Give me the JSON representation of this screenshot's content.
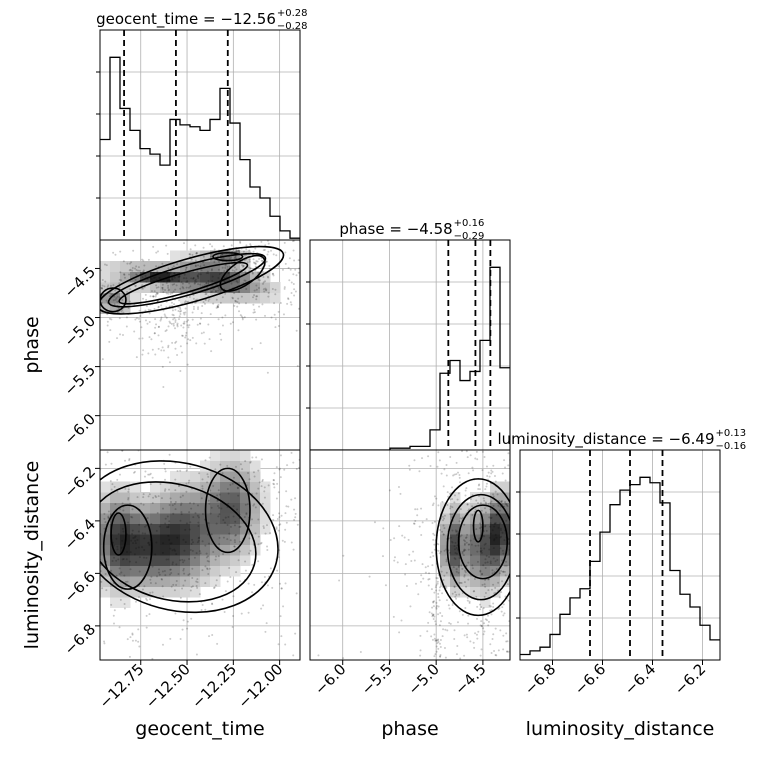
{
  "chart_data": {
    "type": "corner",
    "parameters": [
      "geocent_time",
      "phase",
      "luminosity_distance"
    ],
    "titles": [
      {
        "param": "geocent_time",
        "prefix": "geocent_time = ",
        "median": "−12.56",
        "plus": "+0.28",
        "minus": "−0.28"
      },
      {
        "param": "phase",
        "prefix": "phase = ",
        "median": "−4.58",
        "plus": "+0.16",
        "minus": "−0.29"
      },
      {
        "param": "luminosity_distance",
        "prefix": "luminosity_distance = ",
        "median": "−6.49",
        "plus": "+0.13",
        "minus": "−0.16"
      }
    ],
    "ranges": {
      "geocent_time": [
        -12.97,
        -11.89
      ],
      "phase": [
        -6.35,
        -4.21
      ],
      "luminosity_distance": [
        -6.93,
        -6.13
      ]
    },
    "xlabels": [
      "geocent_time",
      "phase",
      "luminosity_distance"
    ],
    "ylabels": [
      "phase",
      "luminosity_distance"
    ],
    "ticks": {
      "geocent_time": {
        "values": [
          -12.75,
          -12.5,
          -12.25,
          -12.0
        ],
        "labels": [
          "−12.75",
          "−12.50",
          "−12.25",
          "−12.00"
        ]
      },
      "phase": {
        "values": [
          -6.0,
          -5.5,
          -5.0,
          -4.5
        ],
        "labels": [
          "−6.0",
          "−5.5",
          "−5.0",
          "−4.5"
        ]
      },
      "luminosity_distance": {
        "values": [
          -6.8,
          -6.6,
          -6.4,
          -6.2
        ],
        "labels": [
          "−6.8",
          "−6.6",
          "−6.4",
          "−6.2"
        ]
      }
    },
    "histograms": [
      {
        "param": "geocent_time",
        "edges": [
          -12.97,
          -12.916,
          -12.862,
          -12.808,
          -12.754,
          -12.7,
          -12.646,
          -12.592,
          -12.538,
          -12.484,
          -12.43,
          -12.376,
          -12.322,
          -12.268,
          -12.214,
          -12.16,
          -12.106,
          -12.052,
          -11.998,
          -11.944,
          -11.89
        ],
        "counts": [
          0.55,
          1.0,
          0.72,
          0.6,
          0.5,
          0.47,
          0.41,
          0.66,
          0.63,
          0.62,
          0.6,
          0.66,
          0.83,
          0.64,
          0.44,
          0.29,
          0.23,
          0.13,
          0.05,
          0.01
        ],
        "quantiles": [
          -12.84,
          -12.56,
          -12.28
        ]
      },
      {
        "param": "phase",
        "edges": [
          -6.35,
          -6.243,
          -6.136,
          -6.029,
          -5.922,
          -5.815,
          -5.708,
          -5.601,
          -5.494,
          -5.387,
          -5.28,
          -5.173,
          -5.066,
          -4.959,
          -4.852,
          -4.745,
          -4.638,
          -4.531,
          -4.424,
          -4.317,
          -4.21
        ],
        "counts": [
          0,
          0,
          0,
          0,
          0,
          0,
          0,
          0,
          0.01,
          0.01,
          0.02,
          0.02,
          0.11,
          0.42,
          0.49,
          0.38,
          0.43,
          0.6,
          1.0,
          0.45
        ],
        "quantiles": [
          -4.87,
          -4.58,
          -4.42
        ]
      },
      {
        "param": "luminosity_distance",
        "edges": [
          -6.93,
          -6.89,
          -6.85,
          -6.81,
          -6.77,
          -6.73,
          -6.69,
          -6.65,
          -6.61,
          -6.57,
          -6.53,
          -6.49,
          -6.45,
          -6.41,
          -6.37,
          -6.33,
          -6.29,
          -6.25,
          -6.21,
          -6.17,
          -6.13
        ],
        "counts": [
          0.03,
          0.05,
          0.07,
          0.14,
          0.25,
          0.34,
          0.39,
          0.54,
          0.7,
          0.85,
          0.93,
          0.96,
          1.0,
          0.97,
          0.86,
          0.49,
          0.36,
          0.29,
          0.19,
          0.11
        ],
        "quantiles": [
          -6.65,
          -6.49,
          -6.36
        ]
      }
    ],
    "densities": [
      {
        "x": "geocent_time",
        "y": "phase",
        "dense_regions": [
          {
            "cx": -12.5,
            "cy": -4.62,
            "sx": 0.3,
            "sy": 0.1,
            "angle": -16
          },
          {
            "cx": -12.9,
            "cy": -4.82,
            "sx": 0.07,
            "sy": 0.1,
            "angle": 0
          },
          {
            "cx": -12.32,
            "cy": -4.55,
            "sx": 0.16,
            "sy": 0.09,
            "angle": -35
          },
          {
            "cx": -12.28,
            "cy": -4.38,
            "sx": 0.07,
            "sy": 0.04,
            "angle": 0
          },
          {
            "cx": -12.65,
            "cy": -4.6,
            "sx": 0.1,
            "sy": 0.04,
            "angle": -10
          }
        ],
        "scatter_regions": [
          {
            "cx": -12.6,
            "cy": -5.0,
            "sx": 0.06,
            "sy": 0.18,
            "angle": 0,
            "n": 140
          },
          {
            "cx": -12.45,
            "cy": -4.85,
            "sx": 0.18,
            "sy": 0.14,
            "angle": -20,
            "n": 220
          },
          {
            "cx": -12.1,
            "cy": -4.45,
            "sx": 0.12,
            "sy": 0.12,
            "angle": 0,
            "n": 150
          }
        ],
        "contours": [
          {
            "cx": -12.48,
            "cy": -4.62,
            "rx": 0.52,
            "ry": 0.22,
            "angle": -16
          },
          {
            "cx": -12.5,
            "cy": -4.62,
            "rx": 0.44,
            "ry": 0.15,
            "angle": -16
          },
          {
            "cx": -12.52,
            "cy": -4.65,
            "rx": 0.36,
            "ry": 0.1,
            "angle": -16
          },
          {
            "cx": -12.9,
            "cy": -4.82,
            "rx": 0.07,
            "ry": 0.12,
            "angle": 0
          },
          {
            "cx": -12.2,
            "cy": -4.55,
            "rx": 0.14,
            "ry": 0.12,
            "angle": -35
          },
          {
            "cx": -12.28,
            "cy": -4.38,
            "rx": 0.08,
            "ry": 0.04,
            "angle": 0
          }
        ]
      },
      {
        "x": "geocent_time",
        "y": "luminosity_distance",
        "dense_regions": [
          {
            "cx": -12.88,
            "cy": -6.47,
            "sx": 0.08,
            "sy": 0.12,
            "angle": 0
          },
          {
            "cx": -12.7,
            "cy": -6.5,
            "sx": 0.12,
            "sy": 0.1,
            "angle": 0
          },
          {
            "cx": -12.5,
            "cy": -6.45,
            "sx": 0.12,
            "sy": 0.12,
            "angle": 0
          },
          {
            "cx": -12.25,
            "cy": -6.35,
            "sx": 0.1,
            "sy": 0.12,
            "angle": 0
          }
        ],
        "scatter_regions": [
          {
            "cx": -12.55,
            "cy": -6.5,
            "sx": 0.4,
            "sy": 0.2,
            "angle": 0,
            "n": 500
          },
          {
            "cx": -12.1,
            "cy": -6.3,
            "sx": 0.12,
            "sy": 0.15,
            "angle": 0,
            "n": 150
          }
        ],
        "contours": [
          {
            "cx": -12.55,
            "cy": -6.46,
            "rx": 0.55,
            "ry": 0.28,
            "angle": 15
          },
          {
            "cx": -12.58,
            "cy": -6.48,
            "rx": 0.46,
            "ry": 0.22,
            "angle": 15
          },
          {
            "cx": -12.82,
            "cy": -6.5,
            "rx": 0.13,
            "ry": 0.16,
            "angle": 0
          },
          {
            "cx": -12.28,
            "cy": -6.36,
            "rx": 0.12,
            "ry": 0.16,
            "angle": 0
          },
          {
            "cx": -12.87,
            "cy": -6.45,
            "rx": 0.04,
            "ry": 0.08,
            "angle": 0
          }
        ]
      },
      {
        "x": "phase",
        "y": "luminosity_distance",
        "dense_regions": [
          {
            "cx": -4.5,
            "cy": -6.5,
            "sx": 0.15,
            "sy": 0.11,
            "angle": 0
          },
          {
            "cx": -4.3,
            "cy": -6.43,
            "sx": 0.08,
            "sy": 0.1,
            "angle": 0
          },
          {
            "cx": -4.82,
            "cy": -6.5,
            "sx": 0.08,
            "sy": 0.1,
            "angle": 0
          }
        ],
        "scatter_regions": [
          {
            "cx": -4.55,
            "cy": -6.5,
            "sx": 0.3,
            "sy": 0.2,
            "angle": 0,
            "n": 600
          },
          {
            "cx": -5.6,
            "cy": -6.5,
            "sx": 0.5,
            "sy": 0.3,
            "angle": 0,
            "n": 25
          },
          {
            "cx": -5.0,
            "cy": -6.75,
            "sx": 0.02,
            "sy": 0.12,
            "angle": 0,
            "n": 60
          }
        ],
        "contours": [
          {
            "cx": -4.55,
            "cy": -6.5,
            "rx": 0.45,
            "ry": 0.26,
            "angle": 0
          },
          {
            "cx": -4.52,
            "cy": -6.5,
            "rx": 0.36,
            "ry": 0.2,
            "angle": 0
          },
          {
            "cx": -4.5,
            "cy": -6.48,
            "rx": 0.26,
            "ry": 0.14,
            "angle": 0
          },
          {
            "cx": -4.55,
            "cy": -6.42,
            "rx": 0.05,
            "ry": 0.06,
            "angle": 0
          }
        ]
      }
    ],
    "grid": true,
    "colors": {
      "line": "#000000",
      "grid": "#b0b0b0",
      "quantile": "#000000",
      "density": "#000000"
    }
  }
}
